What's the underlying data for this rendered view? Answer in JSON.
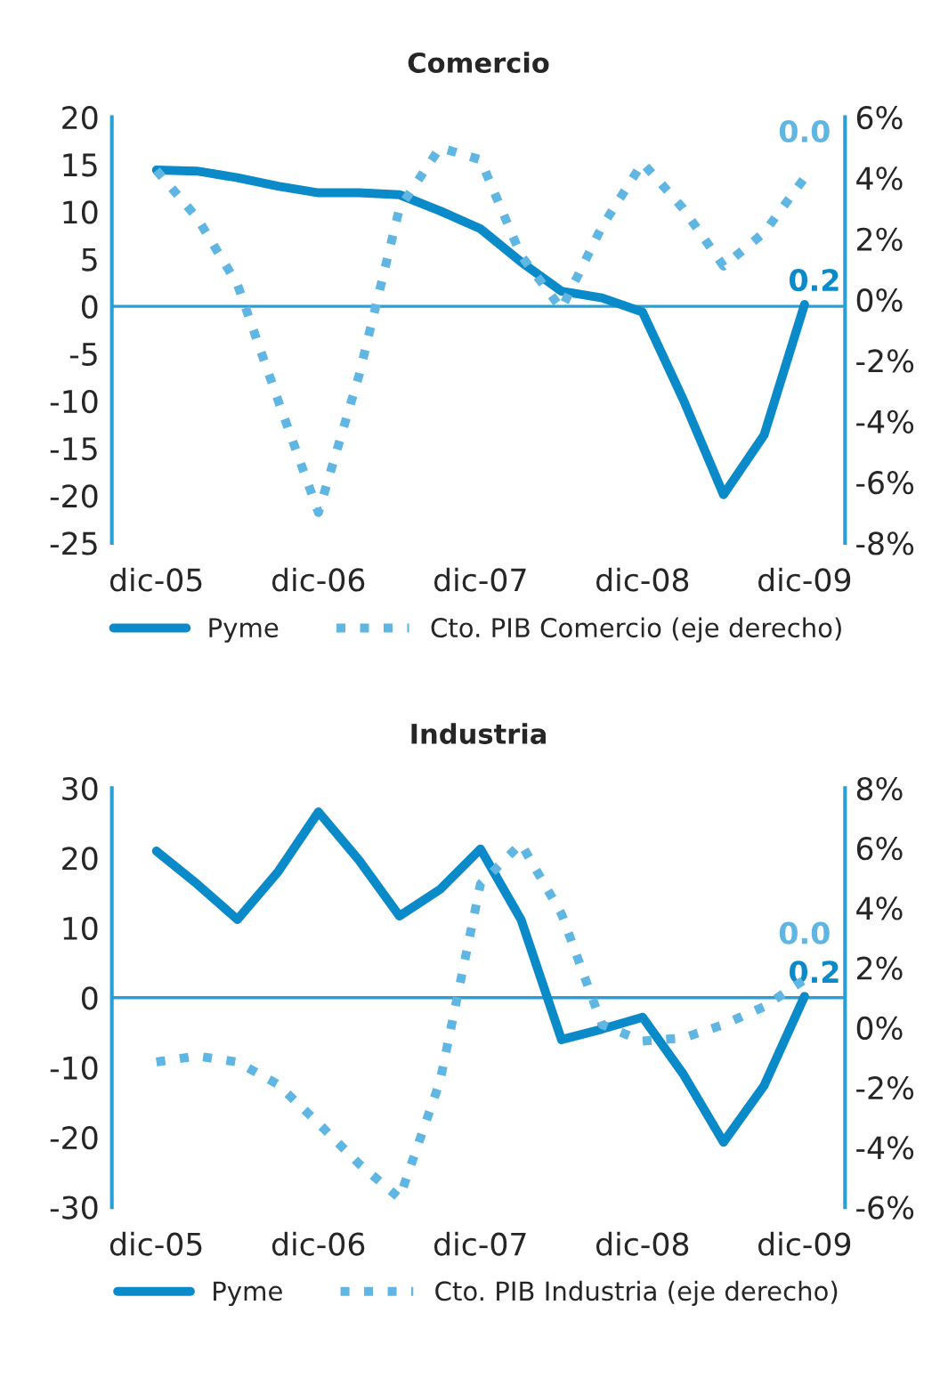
{
  "chart_data": [
    {
      "type": "line",
      "title": "Comercio",
      "categories": [
        "dic-05",
        null,
        null,
        null,
        "dic-06",
        null,
        null,
        null,
        "dic-07",
        null,
        null,
        null,
        "dic-08",
        null,
        null,
        null,
        "dic-09"
      ],
      "series": [
        {
          "name": "Pyme",
          "color": "#0a8ac8",
          "line_style": "solid",
          "values": [
            14.4,
            14.3,
            13.6,
            12.7,
            12.0,
            12.0,
            11.8,
            10.1,
            8.2,
            4.7,
            1.6,
            0.9,
            -0.6,
            -9.8,
            -19.9,
            -13.6,
            0.2
          ]
        },
        {
          "name": "Cto. PIB Comercio (eje derecho)",
          "color": "#5fb6e2",
          "line_style": "dotted",
          "axis": "y2",
          "values": [
            4.25,
            2.7,
            0.5,
            -3.3,
            -7.0,
            -2.5,
            3.0,
            5.0,
            4.6,
            1.45,
            -0.3,
            2.4,
            4.5,
            3.0,
            1.1,
            2.2,
            4.0
          ]
        }
      ],
      "ylim": [
        -25,
        20
      ],
      "yticks": [
        -25,
        -20,
        -15,
        -10,
        -5,
        0,
        5,
        10,
        15,
        20
      ],
      "y2lim": [
        -8,
        6
      ],
      "y2ticks": [
        {
          "value": -8,
          "label": "-8%"
        },
        {
          "value": -6,
          "label": "-6%"
        },
        {
          "value": -4,
          "label": "-4%"
        },
        {
          "value": -2,
          "label": "-2%"
        },
        {
          "value": 0,
          "label": "0%"
        },
        {
          "value": 2,
          "label": "2%"
        },
        {
          "value": 4,
          "label": "4%"
        },
        {
          "value": 6,
          "label": "6%"
        }
      ],
      "ref_lines": [
        {
          "axis": "y",
          "value": 0,
          "color": "#2a9fd6"
        }
      ],
      "annotations": [
        "0.2",
        "0.0"
      ],
      "legend": "bottom"
    },
    {
      "type": "line",
      "title": "Industria",
      "categories": [
        "dic-05",
        null,
        null,
        null,
        "dic-06",
        null,
        null,
        null,
        "dic-07",
        null,
        null,
        null,
        "dic-08",
        null,
        null,
        null,
        "dic-09"
      ],
      "series": [
        {
          "name": "Pyme",
          "color": "#0a8ac8",
          "line_style": "solid",
          "values": [
            21.0,
            16.3,
            11.2,
            18.0,
            26.6,
            19.7,
            11.7,
            15.5,
            21.3,
            11.2,
            -6.0,
            -4.5,
            -2.8,
            -10.9,
            -20.7,
            -12.6,
            0.2
          ]
        },
        {
          "name": "Cto. PIB Industria (eje derecho)",
          "color": "#5fb6e2",
          "line_style": "dotted",
          "axis": "y2",
          "values": [
            -1.15,
            -0.95,
            -1.15,
            -1.9,
            -3.2,
            -4.55,
            -5.7,
            -1.8,
            4.8,
            6.15,
            3.8,
            0.1,
            -0.45,
            -0.35,
            0.1,
            0.7,
            1.6
          ]
        }
      ],
      "ylim": [
        -30,
        30
      ],
      "yticks": [
        -30,
        -20,
        -10,
        0,
        10,
        20,
        30
      ],
      "y2lim": [
        -6,
        8
      ],
      "y2ticks": [
        {
          "value": -6,
          "label": "-6%"
        },
        {
          "value": -4,
          "label": "-4%"
        },
        {
          "value": -2,
          "label": "-2%"
        },
        {
          "value": 0,
          "label": "0%"
        },
        {
          "value": 2,
          "label": "2%"
        },
        {
          "value": 4,
          "label": "4%"
        },
        {
          "value": 6,
          "label": "6%"
        },
        {
          "value": 8,
          "label": "8%"
        }
      ],
      "ref_lines": [
        {
          "axis": "y",
          "value": 0,
          "color": "#2a9fd6"
        }
      ],
      "annotations": [
        "0.2",
        "0.0"
      ],
      "legend": "bottom"
    }
  ]
}
